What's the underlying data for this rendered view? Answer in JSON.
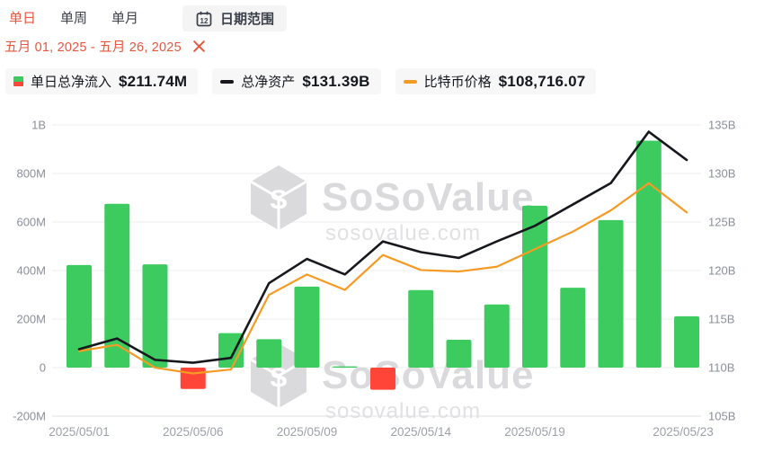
{
  "header": {
    "tabs": [
      {
        "label": "单日",
        "active": true
      },
      {
        "label": "单周",
        "active": false
      },
      {
        "label": "单月",
        "active": false
      }
    ],
    "date_range_button": {
      "label": "日期范围",
      "calendar_day": "12"
    },
    "date_range_value": "五月 01, 2025 - 五月 26, 2025"
  },
  "legend": [
    {
      "label": "单日总净流入",
      "value": "$211.74M"
    },
    {
      "label": "总净资产",
      "value": "$131.39B"
    },
    {
      "label": "比特币价格",
      "value": "$108,716.07"
    }
  ],
  "watermark": {
    "brand": "SoSoValue",
    "url": "sosovalue.com"
  },
  "colors": {
    "accent": "#E4573D",
    "bar_positive": "#3DCB60",
    "bar_negative": "#FF4438",
    "assets_line": "#16181D",
    "price_line": "#F59A23",
    "grid": "#ECECEF",
    "axis_text": "#8A8F99",
    "x_text": "#9CA1A9",
    "watermark": "#D7D7DA"
  },
  "chart_data": {
    "type": "combo",
    "title": "",
    "x": [
      "2025/05/01",
      "2025/05/02",
      "2025/05/05",
      "2025/05/06",
      "2025/05/07",
      "2025/05/08",
      "2025/05/09",
      "2025/05/12",
      "2025/05/13",
      "2025/05/14",
      "2025/05/15",
      "2025/05/16",
      "2025/05/19",
      "2025/05/20",
      "2025/05/21",
      "2025/05/22",
      "2025/05/23"
    ],
    "x_tick_indices": [
      0,
      3,
      6,
      9,
      12,
      16
    ],
    "series": [
      {
        "name": "单日总净流入",
        "type": "bar",
        "axis": "left",
        "unit": "M USD",
        "values": [
          422.5,
          674.9,
          425.3,
          -88.0,
          142.0,
          117.0,
          334.0,
          5.2,
          -91.4,
          319.6,
          115.0,
          260.0,
          667.0,
          329.0,
          608.0,
          935.0,
          211.74
        ]
      },
      {
        "name": "总净资产",
        "type": "line",
        "axis": "right",
        "unit": "B USD",
        "values": [
          111.9,
          113.0,
          110.8,
          110.5,
          111.0,
          118.7,
          121.2,
          119.6,
          123.0,
          121.9,
          121.3,
          123.0,
          124.6,
          126.8,
          129.0,
          134.3,
          131.39
        ]
      },
      {
        "name": "比特币价格",
        "type": "line",
        "axis": "price_hidden",
        "unit": "USD",
        "values": [
          94610,
          95250,
          92930,
          92340,
          92740,
          100330,
          102400,
          100830,
          104380,
          102850,
          102700,
          103190,
          104970,
          106750,
          108910,
          111680,
          108716.07
        ]
      }
    ],
    "left_axis": {
      "ticks": [
        "1B",
        "800M",
        "600M",
        "400M",
        "200M",
        "0",
        "-200M"
      ],
      "min": -200,
      "max": 1000,
      "unit": "M"
    },
    "right_axis": {
      "ticks": [
        "135B",
        "130B",
        "125B",
        "120B",
        "115B",
        "110B",
        "105B"
      ],
      "min": 105,
      "max": 135,
      "unit": "B"
    },
    "price_axis": {
      "min": 88000,
      "max": 117600,
      "visible": false
    },
    "grid": true,
    "legend_position": "top"
  }
}
